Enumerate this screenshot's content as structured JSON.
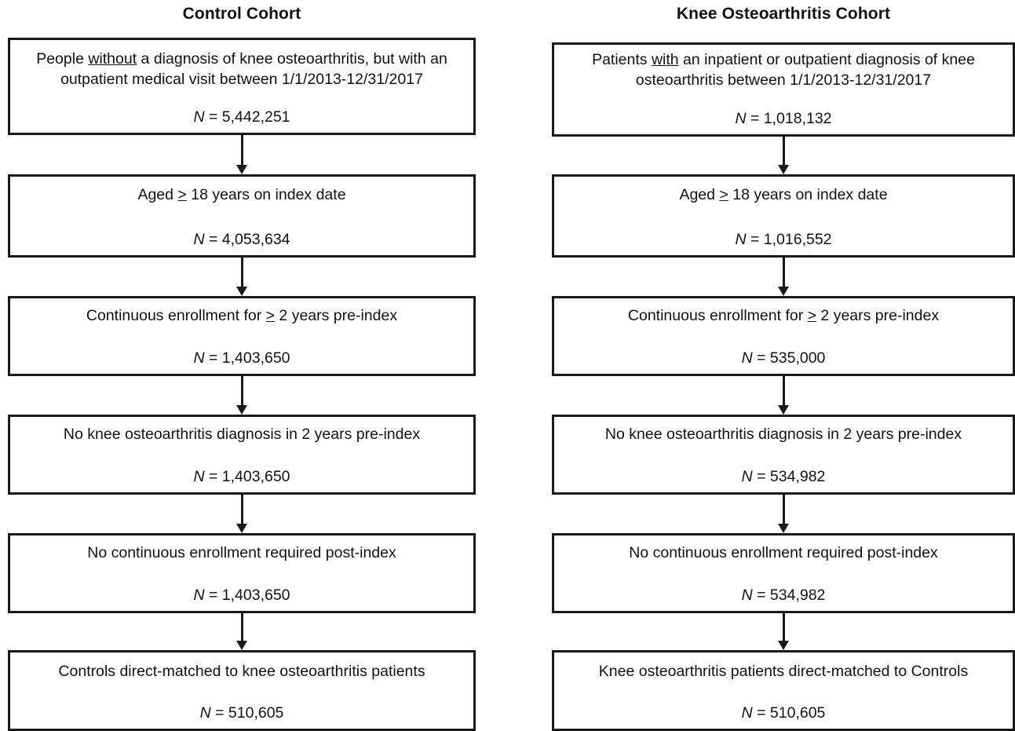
{
  "titles": {
    "control": "Control Cohort",
    "knee": "Knee Osteoarthritis Cohort"
  },
  "n_prefix": "N",
  "control": [
    {
      "pre": "People ",
      "ul": "without",
      "post": " a diagnosis of knee osteoarthritis, but with an outpatient medical visit between 1/1/2013-12/31/2017",
      "n": "5,442,251"
    },
    {
      "pre": "Aged ",
      "ul": ">",
      "post": " 18 years on index date",
      "n": "4,053,634"
    },
    {
      "pre": "Continuous enrollment for ",
      "ul": ">",
      "post": " 2 years pre-index",
      "n": "1,403,650"
    },
    {
      "pre": "No knee osteoarthritis diagnosis in 2 years pre-index",
      "ul": "",
      "post": "",
      "n": "1,403,650"
    },
    {
      "pre": "No continuous enrollment required post-index",
      "ul": "",
      "post": "",
      "n": "1,403,650"
    },
    {
      "pre": "Controls direct-matched to knee osteoarthritis patients",
      "ul": "",
      "post": "",
      "n": "510,605"
    }
  ],
  "knee": [
    {
      "pre": "Patients ",
      "ul": "with",
      "post": " an inpatient or outpatient diagnosis of knee osteoarthritis between 1/1/2013-12/31/2017",
      "n": "1,018,132"
    },
    {
      "pre": "Aged ",
      "ul": ">",
      "post": " 18 years on index date",
      "n": "1,016,552"
    },
    {
      "pre": "Continuous enrollment for ",
      "ul": ">",
      "post": " 2 years pre-index",
      "n": "535,000"
    },
    {
      "pre": "No knee osteoarthritis diagnosis in 2 years pre-index",
      "ul": "",
      "post": "",
      "n": "534,982"
    },
    {
      "pre": "No continuous enrollment required post-index",
      "ul": "",
      "post": "",
      "n": "534,982"
    },
    {
      "pre": "Knee osteoarthritis patients direct-matched to Controls",
      "ul": "",
      "post": "",
      "n": "510,605"
    }
  ]
}
